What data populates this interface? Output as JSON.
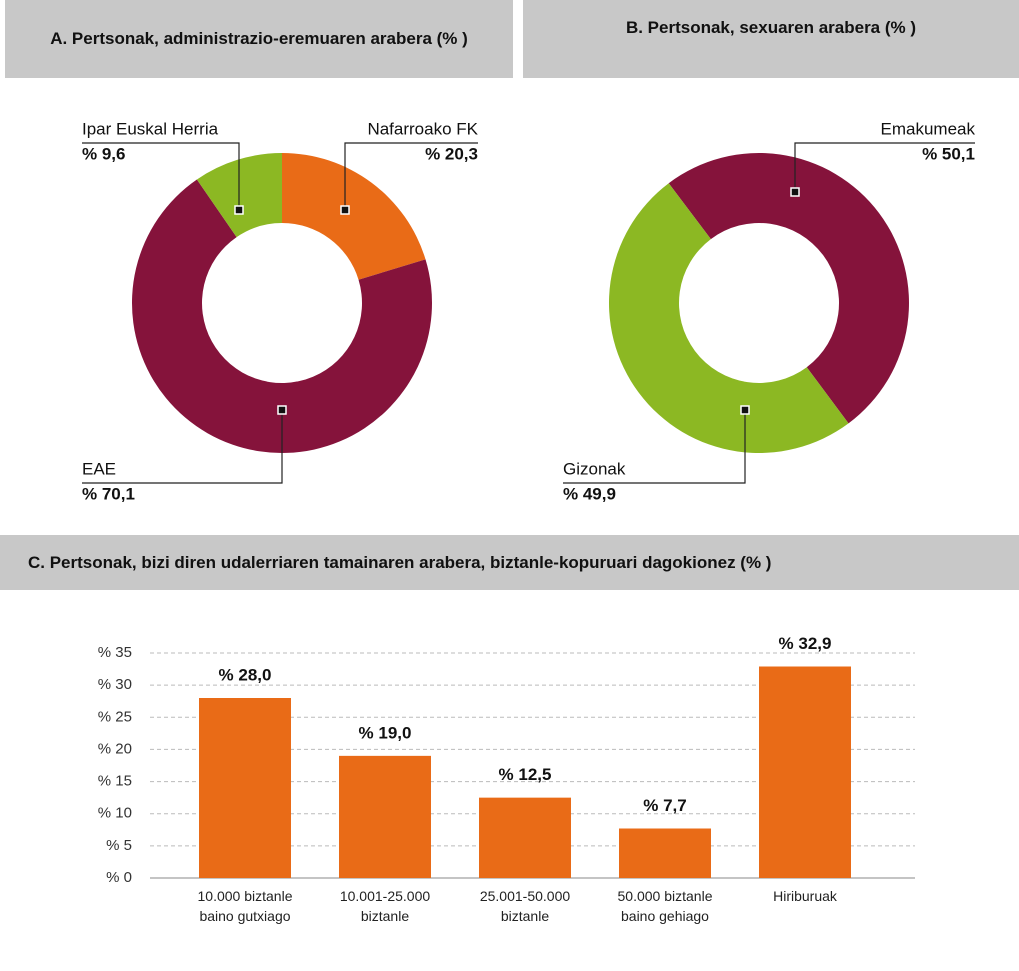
{
  "chart_data": [
    {
      "type": "pie",
      "title": "A. Pertsonak, administrazio-eremuaren arabera (% )",
      "categories": [
        "Nafarroako FK",
        "EAE",
        "Ipar Euskal Herria"
      ],
      "values": [
        20.3,
        70.1,
        9.6
      ],
      "value_labels": [
        "% 20,3",
        "% 70,1",
        "% 9,6"
      ],
      "colors": [
        "#e96b17",
        "#85133b",
        "#8cb823"
      ]
    },
    {
      "type": "pie",
      "title": "B. Pertsonak, sexuaren arabera (% )",
      "categories": [
        "Emakumeak",
        "Gizonak"
      ],
      "values": [
        50.1,
        49.9
      ],
      "value_labels": [
        "% 50,1",
        "% 49,9"
      ],
      "colors": [
        "#85133b",
        "#8cb823"
      ]
    },
    {
      "type": "bar",
      "title": "C. Pertsonak, bizi diren udalerriaren tamainaren arabera, biztanle-kopuruari dagokionez (% )",
      "categories": [
        "10.000 biztanle baino gutxiago",
        "10.001-25.000 biztanle",
        "25.001-50.000 biztanle",
        "50.000 biztanle baino gehiago",
        "Hiriburuak"
      ],
      "values": [
        28.0,
        19.0,
        12.5,
        7.7,
        32.9
      ],
      "value_labels": [
        "% 28,0",
        "% 19,0",
        "% 12,5",
        "% 7,7",
        "% 32,9"
      ],
      "color": "#e96b17",
      "ylim": [
        0,
        35
      ],
      "yticks": [
        {
          "value": 0,
          "label": "% 0"
        },
        {
          "value": 5,
          "label": "% 5"
        },
        {
          "value": 10,
          "label": "% 10"
        },
        {
          "value": 15,
          "label": "% 15"
        },
        {
          "value": 20,
          "label": "% 20"
        },
        {
          "value": 25,
          "label": "% 25"
        },
        {
          "value": 30,
          "label": "% 30"
        },
        {
          "value": 35,
          "label": "% 35"
        }
      ],
      "grid": true
    }
  ]
}
